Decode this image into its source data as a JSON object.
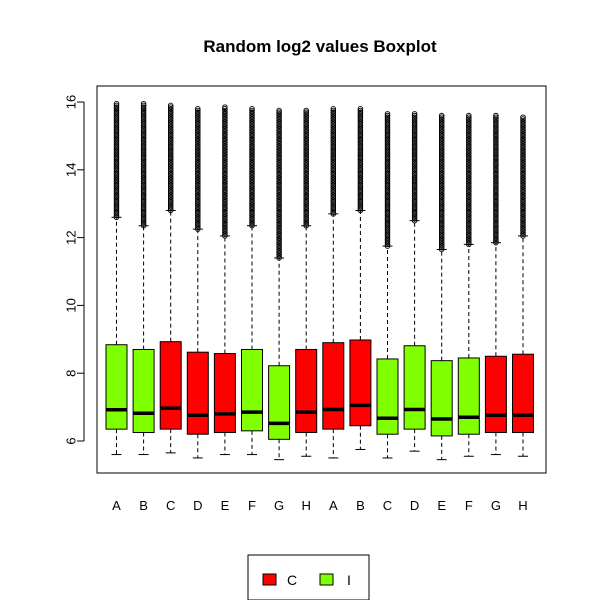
{
  "chart_data": {
    "type": "boxplot",
    "title": "Random log2 values Boxplot",
    "xlabel": "",
    "ylabel": "",
    "ylim": [
      5.0,
      16.5
    ],
    "yticks": [
      6,
      8,
      10,
      12,
      14,
      16
    ],
    "grid": false,
    "legend_position": "bottom-center",
    "categories": [
      "A",
      "B",
      "C",
      "D",
      "E",
      "F",
      "G",
      "H",
      "A",
      "B",
      "C",
      "D",
      "E",
      "F",
      "G",
      "H"
    ],
    "groups": [
      "I",
      "I",
      "C",
      "C",
      "C",
      "I",
      "I",
      "C",
      "C",
      "C",
      "I",
      "I",
      "I",
      "I",
      "C",
      "C"
    ],
    "boxes": [
      {
        "whisker_low": 5.6,
        "q1": 6.35,
        "median": 6.92,
        "q3": 8.84,
        "whisker_high": 12.6,
        "outlier_max": 16.0
      },
      {
        "whisker_low": 5.6,
        "q1": 6.25,
        "median": 6.82,
        "q3": 8.7,
        "whisker_high": 12.35,
        "outlier_max": 16.0
      },
      {
        "whisker_low": 5.65,
        "q1": 6.35,
        "median": 6.97,
        "q3": 8.93,
        "whisker_high": 12.8,
        "outlier_max": 15.95
      },
      {
        "whisker_low": 5.5,
        "q1": 6.2,
        "median": 6.76,
        "q3": 8.62,
        "whisker_high": 12.25,
        "outlier_max": 15.85
      },
      {
        "whisker_low": 5.6,
        "q1": 6.25,
        "median": 6.8,
        "q3": 8.58,
        "whisker_high": 12.05,
        "outlier_max": 15.9
      },
      {
        "whisker_low": 5.6,
        "q1": 6.3,
        "median": 6.85,
        "q3": 8.7,
        "whisker_high": 12.35,
        "outlier_max": 15.85
      },
      {
        "whisker_low": 5.45,
        "q1": 6.05,
        "median": 6.52,
        "q3": 8.22,
        "whisker_high": 11.4,
        "outlier_max": 15.8
      },
      {
        "whisker_low": 5.55,
        "q1": 6.25,
        "median": 6.85,
        "q3": 8.7,
        "whisker_high": 12.35,
        "outlier_max": 15.8
      },
      {
        "whisker_low": 5.5,
        "q1": 6.35,
        "median": 6.93,
        "q3": 8.9,
        "whisker_high": 12.7,
        "outlier_max": 15.85
      },
      {
        "whisker_low": 5.75,
        "q1": 6.45,
        "median": 7.05,
        "q3": 8.98,
        "whisker_high": 12.8,
        "outlier_max": 15.85
      },
      {
        "whisker_low": 5.5,
        "q1": 6.2,
        "median": 6.67,
        "q3": 8.42,
        "whisker_high": 11.75,
        "outlier_max": 15.7
      },
      {
        "whisker_low": 5.7,
        "q1": 6.35,
        "median": 6.93,
        "q3": 8.81,
        "whisker_high": 12.5,
        "outlier_max": 15.7
      },
      {
        "whisker_low": 5.45,
        "q1": 6.15,
        "median": 6.65,
        "q3": 8.37,
        "whisker_high": 11.65,
        "outlier_max": 15.65
      },
      {
        "whisker_low": 5.55,
        "q1": 6.2,
        "median": 6.7,
        "q3": 8.45,
        "whisker_high": 11.8,
        "outlier_max": 15.65
      },
      {
        "whisker_low": 5.6,
        "q1": 6.25,
        "median": 6.76,
        "q3": 8.5,
        "whisker_high": 11.85,
        "outlier_max": 15.65
      },
      {
        "whisker_low": 5.55,
        "q1": 6.25,
        "median": 6.76,
        "q3": 8.56,
        "whisker_high": 12.05,
        "outlier_max": 15.6
      }
    ],
    "legend": [
      {
        "label": "C",
        "color": "#ff0000"
      },
      {
        "label": "I",
        "color": "#80ff00"
      }
    ],
    "colors": {
      "C": "#ff0000",
      "I": "#80ff00"
    }
  }
}
